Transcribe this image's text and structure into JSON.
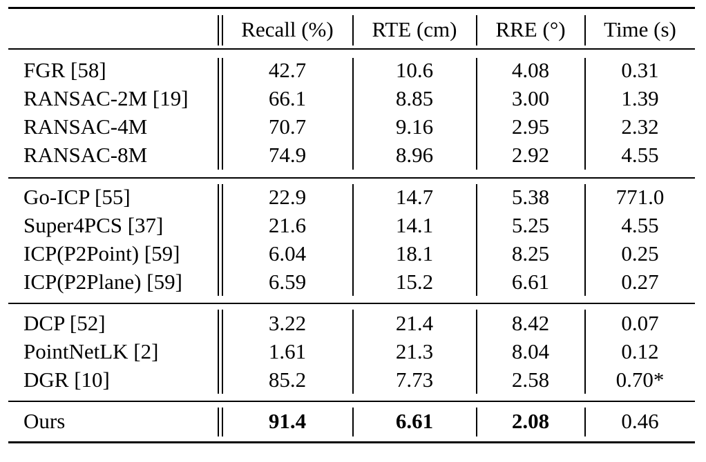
{
  "table": {
    "headers": [
      "",
      "Recall (%)",
      "RTE (cm)",
      "RRE (°)",
      "Time (s)"
    ],
    "groups": [
      {
        "rows": [
          {
            "method": "FGR [58]",
            "recall": "42.7",
            "rte": "10.6",
            "rre": "4.08",
            "time": "0.31"
          },
          {
            "method": "RANSAC-2M [19]",
            "recall": "66.1",
            "rte": "8.85",
            "rre": "3.00",
            "time": "1.39"
          },
          {
            "method": "RANSAC-4M",
            "recall": "70.7",
            "rte": "9.16",
            "rre": "2.95",
            "time": "2.32"
          },
          {
            "method": "RANSAC-8M",
            "recall": "74.9",
            "rte": "8.96",
            "rre": "2.92",
            "time": "4.55"
          }
        ]
      },
      {
        "rows": [
          {
            "method": "Go-ICP [55]",
            "recall": "22.9",
            "rte": "14.7",
            "rre": "5.38",
            "time": "771.0"
          },
          {
            "method": "Super4PCS [37]",
            "recall": "21.6",
            "rte": "14.1",
            "rre": "5.25",
            "time": "4.55"
          },
          {
            "method": "ICP(P2Point) [59]",
            "recall": "6.04",
            "rte": "18.1",
            "rre": "8.25",
            "time": "0.25"
          },
          {
            "method": "ICP(P2Plane) [59]",
            "recall": "6.59",
            "rte": "15.2",
            "rre": "6.61",
            "time": "0.27"
          }
        ]
      },
      {
        "rows": [
          {
            "method": "DCP [52]",
            "recall": "3.22",
            "rte": "21.4",
            "rre": "8.42",
            "time": "0.07"
          },
          {
            "method": "PointNetLK [2]",
            "recall": "1.61",
            "rte": "21.3",
            "rre": "8.04",
            "time": "0.12"
          },
          {
            "method": "DGR [10]",
            "recall": "85.2",
            "rte": "7.73",
            "rre": "2.58",
            "time": "0.70*"
          }
        ]
      },
      {
        "rows": [
          {
            "method": "Ours",
            "recall": "91.4",
            "rte": "6.61",
            "rre": "2.08",
            "time": "0.46",
            "bold": [
              "recall",
              "rte",
              "rre"
            ]
          }
        ]
      }
    ]
  }
}
